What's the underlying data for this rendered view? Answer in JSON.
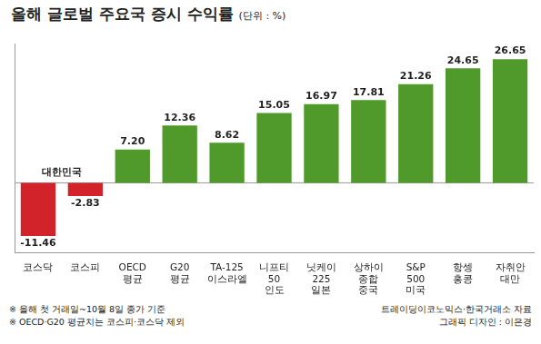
{
  "chart_data": {
    "type": "bar",
    "title": "올해 글로벌 주요국 증시 수익률",
    "subtitle": "(단위 : %)",
    "categories": [
      "코스닥",
      "코스피",
      "OECD 평균",
      "G20 평균",
      "TA-125 이스라엘",
      "니프티 50 인도",
      "닛케이 225 일본",
      "상하이 종합 중국",
      "S&P 500 미국",
      "항셍 홍콩",
      "자취안 대만"
    ],
    "values": [
      -11.46,
      -2.83,
      7.2,
      12.36,
      8.62,
      15.05,
      16.97,
      17.81,
      21.26,
      24.65,
      26.65
    ],
    "value_labels": [
      "-11.46",
      "-2.83",
      "7.20",
      "12.36",
      "8.62",
      "15.05",
      "16.97",
      "17.81",
      "21.26",
      "24.65",
      "26.65"
    ],
    "colors": [
      "#d2232a",
      "#d2232a",
      "#4f9a2a",
      "#4f9a2a",
      "#4f9a2a",
      "#4f9a2a",
      "#4f9a2a",
      "#4f9a2a",
      "#4f9a2a",
      "#4f9a2a",
      "#4f9a2a"
    ],
    "ylim": [
      -15,
      30
    ],
    "tick_labels": "x",
    "grid": false,
    "data_labels": true,
    "annotations": [
      {
        "text": "대한민국",
        "categories": [
          "코스닥",
          "코스피"
        ]
      }
    ],
    "notes": [
      "※ 올해 첫 거래일~10월 8일 종가 기준",
      "※ OECD·G20 평균치는 코스피·코스닥 제외"
    ],
    "source": "트레이딩이코노믹스·한국거래소 자료",
    "credit": "그래픽 디자인 : 이은경"
  }
}
